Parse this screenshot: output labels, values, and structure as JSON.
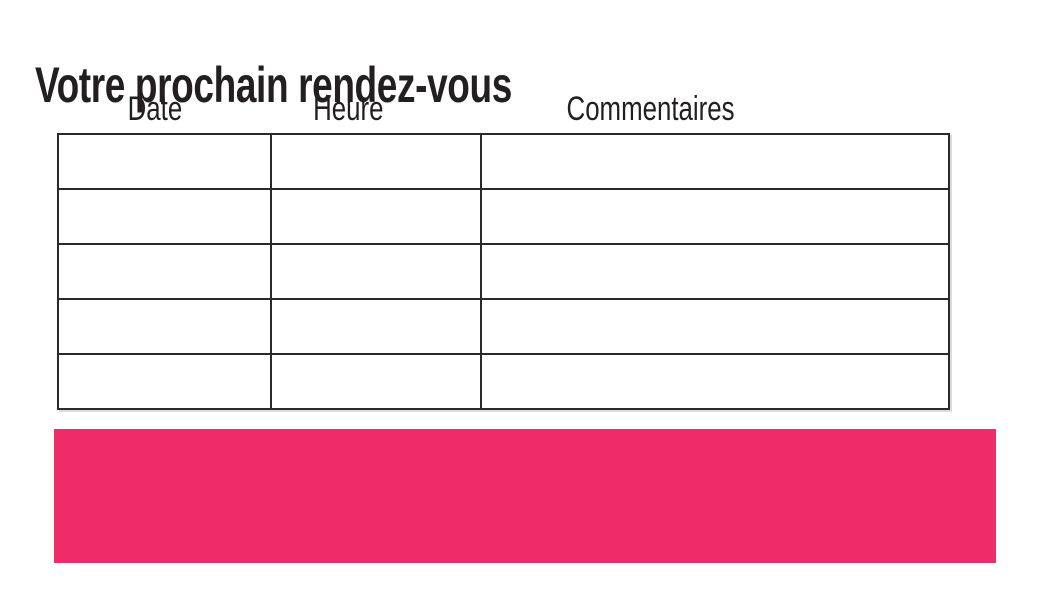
{
  "page": {
    "title": "Votre prochain rendez-vous",
    "background_color": "#ffffff",
    "text_color": "#231f20"
  },
  "table": {
    "columns": [
      {
        "key": "date",
        "label": "Date"
      },
      {
        "key": "heure",
        "label": "Heure"
      },
      {
        "key": "commentaires",
        "label": "Commentaires"
      }
    ],
    "rows": [
      [
        "",
        "",
        ""
      ],
      [
        "",
        "",
        ""
      ],
      [
        "",
        "",
        ""
      ],
      [
        "",
        "",
        ""
      ],
      [
        "",
        "",
        ""
      ]
    ],
    "border_color": "#2a2a2a"
  },
  "banner": {
    "text": "",
    "color": "#ee2d68"
  }
}
